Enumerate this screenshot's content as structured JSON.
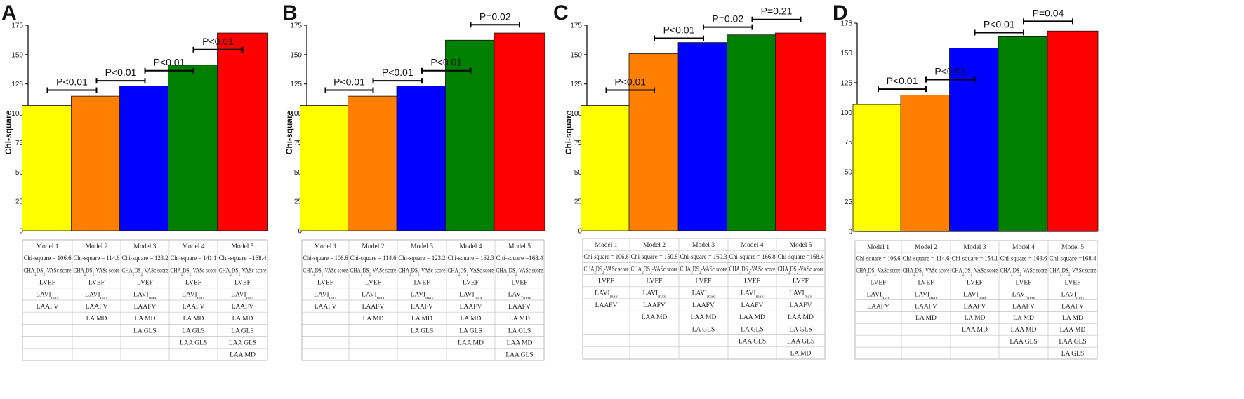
{
  "chart_data": [
    {
      "type": "bar",
      "panel": "A",
      "ylabel": "Chi-square",
      "ylim": [
        0,
        175
      ],
      "yticks": [
        0,
        25,
        50,
        75,
        100,
        125,
        150,
        175
      ],
      "categories": [
        "Model 1",
        "Model 2",
        "Model 3",
        "Model 4",
        "Model 5"
      ],
      "values": [
        106.6,
        114.6,
        123.2,
        141.1,
        168.4
      ],
      "bar_colors": [
        "#ffff00",
        "#ff8000",
        "#0000ff",
        "#008000",
        "#ff0000"
      ],
      "comparisons": [
        {
          "from": 0,
          "to": 1,
          "label": "P<0.01"
        },
        {
          "from": 1,
          "to": 2,
          "label": "P<0.01"
        },
        {
          "from": 2,
          "to": 3,
          "label": "P<0.01"
        },
        {
          "from": 3,
          "to": 4,
          "label": "P<0.01"
        }
      ],
      "table": [
        [
          "Model 1",
          "Model 2",
          "Model 3",
          "Model 4",
          "Model 5"
        ],
        [
          "Chi-square = 106.6",
          "Chi-square = 114.6",
          "Chi-square = 123.2",
          "Chi-square = 141.1",
          "Chi-square =168.4"
        ],
        [
          "CHA2DS2-VASc score",
          "CHA2DS2-VASc score",
          "CHA2DS2-VASc score",
          "CHA2DS2-VASc score",
          "CHA2DS2-VASc score"
        ],
        [
          "LVEF",
          "LVEF",
          "LVEF",
          "LVEF",
          "LVEF"
        ],
        [
          "LAVImax",
          "LAVImax",
          "LAVImax",
          "LAVImax",
          "LAVImax"
        ],
        [
          "LAAFV",
          "LAAFV",
          "LAAFV",
          "LAAFV",
          "LAAFV"
        ],
        [
          "",
          "LA MD",
          "LA MD",
          "LA MD",
          "LA MD"
        ],
        [
          "",
          "",
          "LA GLS",
          "LA GLS",
          "LA GLS"
        ],
        [
          "",
          "",
          "",
          "LAA GLS",
          "LAA GLS"
        ],
        [
          "",
          "",
          "",
          "",
          "LAA MD"
        ]
      ]
    },
    {
      "type": "bar",
      "panel": "B",
      "ylabel": "Chi-square",
      "ylim": [
        0,
        175
      ],
      "yticks": [
        0,
        25,
        50,
        75,
        100,
        125,
        150,
        175
      ],
      "categories": [
        "Model 1",
        "Model 2",
        "Model 3",
        "Model 4",
        "Model 5"
      ],
      "values": [
        106.6,
        114.6,
        123.2,
        162.3,
        168.4
      ],
      "bar_colors": [
        "#ffff00",
        "#ff8000",
        "#0000ff",
        "#008000",
        "#ff0000"
      ],
      "comparisons": [
        {
          "from": 0,
          "to": 1,
          "label": "P<0.01"
        },
        {
          "from": 1,
          "to": 2,
          "label": "P<0.01"
        },
        {
          "from": 2,
          "to": 3,
          "label": "P<0.01"
        },
        {
          "from": 3,
          "to": 4,
          "label": "P=0.02"
        }
      ],
      "table": [
        [
          "Model 1",
          "Model 2",
          "Model 3",
          "Model 4",
          "Model 5"
        ],
        [
          "Chi-square = 106.6",
          "Chi-square = 114.6",
          "Chi-square = 123.2",
          "Chi-square = 162.3",
          "Chi-square =168.4"
        ],
        [
          "CHA2DS2-VASc score",
          "CHA2DS2-VASc score",
          "CHA2DS2-VASc score",
          "CHA2DS2-VASc score",
          "CHA2DS2-VASc score"
        ],
        [
          "LVEF",
          "LVEF",
          "LVEF",
          "LVEF",
          "LVEF"
        ],
        [
          "LAVImax",
          "LAVImax",
          "LAVImax",
          "LAVImax",
          "LAVImax"
        ],
        [
          "LAAFV",
          "LAAFV",
          "LAAFV",
          "LAAFV",
          "LAAFV"
        ],
        [
          "",
          "LA MD",
          "LA MD",
          "LA MD",
          "LA MD"
        ],
        [
          "",
          "",
          "LA GLS",
          "LA GLS",
          "LA GLS"
        ],
        [
          "",
          "",
          "",
          "LAA MD",
          "LAA MD"
        ],
        [
          "",
          "",
          "",
          "",
          "LAA GLS"
        ]
      ]
    },
    {
      "type": "bar",
      "panel": "C",
      "ylabel": "Chi-square",
      "ylim": [
        0,
        175
      ],
      "yticks": [
        0,
        25,
        50,
        75,
        100,
        125,
        150,
        175
      ],
      "categories": [
        "Model 1",
        "Model 2",
        "Model 3",
        "Model 4",
        "Model 5"
      ],
      "values": [
        106.6,
        150.8,
        160.3,
        166.8,
        168.4
      ],
      "bar_colors": [
        "#ffff00",
        "#ff8000",
        "#0000ff",
        "#008000",
        "#ff0000"
      ],
      "comparisons": [
        {
          "from": 0,
          "to": 1,
          "label": "P<0.01"
        },
        {
          "from": 1,
          "to": 2,
          "label": "P<0.01"
        },
        {
          "from": 2,
          "to": 3,
          "label": "P=0.02"
        },
        {
          "from": 3,
          "to": 4,
          "label": "P=0.21"
        }
      ],
      "table": [
        [
          "Model 1",
          "Model 2",
          "Model 3",
          "Model 4",
          "Model 5"
        ],
        [
          "Chi-square = 106.6",
          "Chi-square = 150.8",
          "Chi-square = 160.3",
          "Chi-square = 166.8",
          "Chi-square =168.4"
        ],
        [
          "CHA2DS2-VASc score",
          "CHA2DS2-VASc score",
          "CHA2DS2-VASc score",
          "CHA2DS2-VASc score",
          "CHA2DS2-VASc score"
        ],
        [
          "LVEF",
          "LVEF",
          "LVEF",
          "LVEF",
          "LVEF"
        ],
        [
          "LAVImax",
          "LAVImax",
          "LAVImax",
          "LAVImax",
          "LAVImax"
        ],
        [
          "LAAFV",
          "LAAFV",
          "LAAFV",
          "LAAFV",
          "LAAFV"
        ],
        [
          "",
          "LAA MD",
          "LAA MD",
          "LAA MD",
          "LAA MD"
        ],
        [
          "",
          "",
          "LA GLS",
          "LA GLS",
          "LA GLS"
        ],
        [
          "",
          "",
          "",
          "LAA GLS",
          "LAA GLS"
        ],
        [
          "",
          "",
          "",
          "",
          "LA MD"
        ]
      ]
    },
    {
      "type": "bar",
      "panel": "D",
      "ylabel": "",
      "ylim": [
        0,
        175
      ],
      "yticks": [
        0,
        25,
        50,
        75,
        100,
        125,
        150,
        175
      ],
      "categories": [
        "Model 1",
        "Model 2",
        "Model 3",
        "Model 4",
        "Model 5"
      ],
      "values": [
        106.6,
        114.6,
        154.1,
        163.6,
        168.4
      ],
      "bar_colors": [
        "#ffff00",
        "#ff8000",
        "#0000ff",
        "#008000",
        "#ff0000"
      ],
      "comparisons": [
        {
          "from": 0,
          "to": 1,
          "label": "P<0.01"
        },
        {
          "from": 1,
          "to": 2,
          "label": "P<0.01"
        },
        {
          "from": 2,
          "to": 3,
          "label": "P<0.01"
        },
        {
          "from": 3,
          "to": 4,
          "label": "P=0.04"
        }
      ],
      "table": [
        [
          "Model 1",
          "Model 2",
          "Model 3",
          "Model 4",
          "Model 5"
        ],
        [
          "Chi-square = 106.6",
          "Chi-square = 114.6",
          "Chi-square = 154.1",
          "Chi-square = 163.6",
          "Chi-square =168.4"
        ],
        [
          "CHA2DS2-VASc score",
          "CHA2DS2-VASc score",
          "CHA2DS2-VASc score",
          "CHA2DS2-VASc score",
          "CHA2DS2-VASc score"
        ],
        [
          "LVEF",
          "LVEF",
          "LVEF",
          "LVEF",
          "LVEF"
        ],
        [
          "LAVImax",
          "LAVImax",
          "LAVImax",
          "LAVImax",
          "LAVImax"
        ],
        [
          "LAAFV",
          "LAAFV",
          "LAAFV",
          "LAAFV",
          "LAAFV"
        ],
        [
          "",
          "LA MD",
          "LA MD",
          "LA MD",
          "LA MD"
        ],
        [
          "",
          "",
          "LAA MD",
          "LAA MD",
          "LAA MD"
        ],
        [
          "",
          "",
          "",
          "LAA GLS",
          "LAA GLS"
        ],
        [
          "",
          "",
          "",
          "",
          "LA GLS"
        ]
      ]
    }
  ]
}
